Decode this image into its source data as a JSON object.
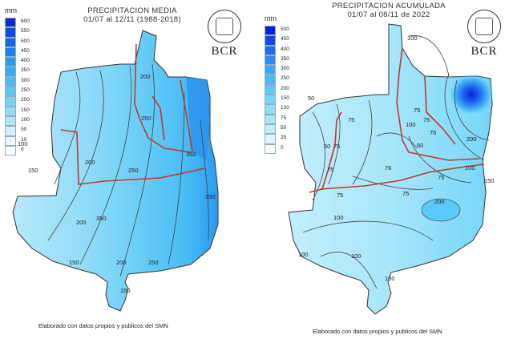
{
  "maps": [
    {
      "title_line1": "PRECIPITACION MEDIA",
      "title_line2": "01/07 al 12/11 (1988-2018)",
      "unit": "mm",
      "legend": [
        {
          "label": "600",
          "color": "#0a2ad8"
        },
        {
          "label": "550",
          "color": "#0f49e6"
        },
        {
          "label": "500",
          "color": "#1566ee"
        },
        {
          "label": "450",
          "color": "#1e82f2"
        },
        {
          "label": "400",
          "color": "#2a9af4"
        },
        {
          "label": "350",
          "color": "#36acf4"
        },
        {
          "label": "300",
          "color": "#48bcf4"
        },
        {
          "label": "250",
          "color": "#5ccaf6"
        },
        {
          "label": "200",
          "color": "#74d4f8"
        },
        {
          "label": "150",
          "color": "#92def8"
        },
        {
          "label": "100",
          "color": "#b0e8fa"
        },
        {
          "label": "50",
          "color": "#d0f2fc"
        },
        {
          "label": "10",
          "color": "#e8f8fe"
        },
        {
          "label": "0",
          "color": "#ffffff"
        }
      ],
      "contours": [
        "100",
        "150",
        "200",
        "250",
        "200",
        "250",
        "350",
        "200",
        "150",
        "200",
        "250",
        "350",
        "350",
        "150"
      ],
      "logo_text": "BCR",
      "footer": "Elaborado con datos propios y publicos del SMN"
    },
    {
      "title_line1": "PRECIPITACION ACUMULADA",
      "title_line2": "01/07 al 08/11 de 2022",
      "unit": "mm",
      "legend": [
        {
          "label": "500",
          "color": "#0a1ee0"
        },
        {
          "label": "450",
          "color": "#1446ea"
        },
        {
          "label": "400",
          "color": "#1e6af0"
        },
        {
          "label": "350",
          "color": "#2a8cf4"
        },
        {
          "label": "300",
          "color": "#36a8f4"
        },
        {
          "label": "250",
          "color": "#48bcf6"
        },
        {
          "label": "200",
          "color": "#5ccaf8"
        },
        {
          "label": "150",
          "color": "#74d6f8"
        },
        {
          "label": "100",
          "color": "#8edef8"
        },
        {
          "label": "75",
          "color": "#a8e6fa"
        },
        {
          "label": "50",
          "color": "#c2eefc"
        },
        {
          "label": "25",
          "color": "#dcf6fe"
        },
        {
          "label": "0",
          "color": "#f4fcff"
        }
      ],
      "contours": [
        "100",
        "50",
        "75",
        "75",
        "100",
        "50",
        "76",
        "75",
        "60",
        "75",
        "100",
        "75",
        "75",
        "100",
        "76",
        "75",
        "200",
        "200",
        "75",
        "100",
        "100",
        "100",
        "150"
      ],
      "logo_text": "BCR",
      "footer": "Elaborado con datos propios y publicos del SMN"
    }
  ]
}
